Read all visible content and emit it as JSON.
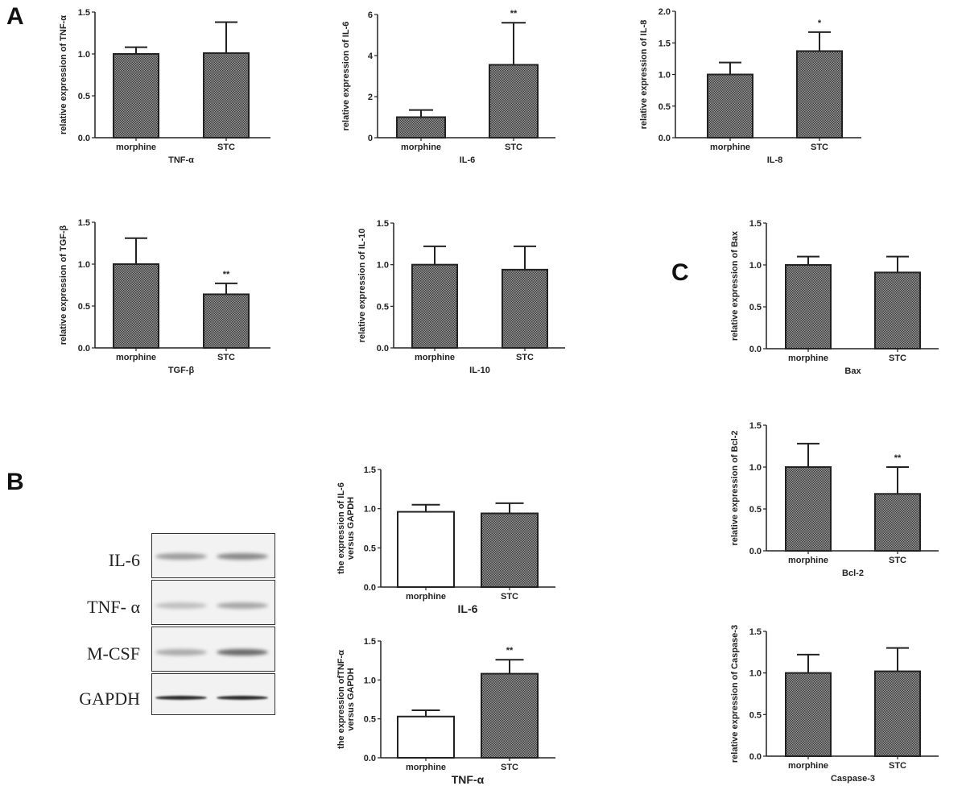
{
  "panels": {
    "a": "A",
    "b": "B",
    "c": "C"
  },
  "western_blot": {
    "rows": [
      {
        "label": "IL-6",
        "intensity": [
          0.35,
          0.45
        ]
      },
      {
        "label": "TNF- α",
        "intensity": [
          0.18,
          0.3
        ]
      },
      {
        "label": "M-CSF",
        "intensity": [
          0.28,
          0.6
        ]
      },
      {
        "label": "GAPDH",
        "intensity": [
          0.9,
          0.9
        ]
      }
    ]
  },
  "colors": {
    "hatch": "#555555",
    "axis": "#222222",
    "white_bar": "#ffffff"
  },
  "chart_data": [
    {
      "id": "A-TNF",
      "type": "bar",
      "categories": [
        "morphine",
        "STC"
      ],
      "values": [
        1.0,
        1.01
      ],
      "error_upper": [
        1.08,
        1.38
      ],
      "significance": [
        "",
        ""
      ],
      "fills": [
        "hatch",
        "hatch"
      ],
      "ylim": [
        0,
        1.5
      ],
      "yticks": [
        "0.0",
        "0.5",
        "1.0",
        "1.5"
      ],
      "ylabel": [
        "relative expression of TNF-α"
      ],
      "xlabel": "TNF-α"
    },
    {
      "id": "A-IL6",
      "type": "bar",
      "categories": [
        "morphine",
        "STC"
      ],
      "values": [
        1.0,
        3.55
      ],
      "error_upper": [
        1.35,
        5.6
      ],
      "significance": [
        "",
        "**"
      ],
      "fills": [
        "hatch",
        "hatch"
      ],
      "ylim": [
        0,
        6
      ],
      "yticks": [
        "0",
        "2",
        "4",
        "6"
      ],
      "ylabel": [
        "relative expression of IL-6"
      ],
      "xlabel": "IL-6"
    },
    {
      "id": "A-IL8",
      "type": "bar",
      "categories": [
        "morphine",
        "STC"
      ],
      "values": [
        1.0,
        1.37
      ],
      "error_upper": [
        1.19,
        1.67
      ],
      "significance": [
        "",
        "*"
      ],
      "fills": [
        "hatch",
        "hatch"
      ],
      "ylim": [
        0,
        2.0
      ],
      "yticks": [
        "0.0",
        "0.5",
        "1.0",
        "1.5",
        "2.0"
      ],
      "ylabel": [
        "relative expression of IL-8"
      ],
      "xlabel": "IL-8"
    },
    {
      "id": "A-TGF",
      "type": "bar",
      "categories": [
        "morphine",
        "STC"
      ],
      "values": [
        1.0,
        0.64
      ],
      "error_upper": [
        1.31,
        0.77
      ],
      "significance": [
        "",
        "**"
      ],
      "fills": [
        "hatch",
        "hatch"
      ],
      "ylim": [
        0,
        1.5
      ],
      "yticks": [
        "0.0",
        "0.5",
        "1.0",
        "1.5"
      ],
      "ylabel": [
        "relative expression of TGF-β"
      ],
      "xlabel": "TGF-β"
    },
    {
      "id": "A-IL10",
      "type": "bar",
      "categories": [
        "morphine",
        "STC"
      ],
      "values": [
        1.0,
        0.94
      ],
      "error_upper": [
        1.22,
        1.22
      ],
      "significance": [
        "",
        ""
      ],
      "fills": [
        "hatch",
        "hatch"
      ],
      "ylim": [
        0,
        1.5
      ],
      "yticks": [
        "0.0",
        "0.5",
        "1.0",
        "1.5"
      ],
      "ylabel": [
        "relative expression of IL-10"
      ],
      "xlabel": "IL-10"
    },
    {
      "id": "C-Bax",
      "type": "bar",
      "categories": [
        "morphine",
        "STC"
      ],
      "values": [
        1.0,
        0.91
      ],
      "error_upper": [
        1.1,
        1.1
      ],
      "significance": [
        "",
        ""
      ],
      "fills": [
        "hatch",
        "hatch"
      ],
      "ylim": [
        0,
        1.5
      ],
      "yticks": [
        "0.0",
        "0.5",
        "1.0",
        "1.5"
      ],
      "ylabel": [
        "relative expression of Bax"
      ],
      "xlabel": "Bax"
    },
    {
      "id": "C-Bcl2",
      "type": "bar",
      "categories": [
        "morphine",
        "STC"
      ],
      "values": [
        1.0,
        0.68
      ],
      "error_upper": [
        1.28,
        1.0
      ],
      "significance": [
        "",
        "**"
      ],
      "fills": [
        "hatch",
        "hatch"
      ],
      "ylim": [
        0,
        1.5
      ],
      "yticks": [
        "0.0",
        "0.5",
        "1.0",
        "1.5"
      ],
      "ylabel": [
        "relative expression of Bcl-2"
      ],
      "xlabel": "Bcl-2"
    },
    {
      "id": "C-Casp3",
      "type": "bar",
      "categories": [
        "morphine",
        "STC"
      ],
      "values": [
        1.0,
        1.02
      ],
      "error_upper": [
        1.22,
        1.3
      ],
      "significance": [
        "",
        ""
      ],
      "fills": [
        "hatch",
        "hatch"
      ],
      "ylim": [
        0,
        1.5
      ],
      "yticks": [
        "0.0",
        "0.5",
        "1.0",
        "1.5"
      ],
      "ylabel": [
        "relative expression of Caspase-3"
      ],
      "xlabel": "Caspase-3"
    },
    {
      "id": "B-IL6",
      "type": "bar",
      "categories": [
        "morphine",
        "STC"
      ],
      "values": [
        0.96,
        0.94
      ],
      "error_upper": [
        1.05,
        1.07
      ],
      "significance": [
        "",
        ""
      ],
      "fills": [
        "white",
        "hatch"
      ],
      "ylim": [
        0,
        1.5
      ],
      "yticks": [
        "0.0",
        "0.5",
        "1.0",
        "1.5"
      ],
      "ylabel": [
        "the expression of IL-6",
        "versus GAPDH"
      ],
      "xlabel": "IL-6"
    },
    {
      "id": "B-TNF",
      "type": "bar",
      "categories": [
        "morphine",
        "STC"
      ],
      "values": [
        0.53,
        1.08
      ],
      "error_upper": [
        0.61,
        1.26
      ],
      "significance": [
        "",
        "**"
      ],
      "fills": [
        "white",
        "hatch"
      ],
      "ylim": [
        0,
        1.5
      ],
      "yticks": [
        "0.0",
        "0.5",
        "1.0",
        "1.5"
      ],
      "ylabel": [
        "the expression ofTNF-α",
        "versus GAPDH"
      ],
      "xlabel": "TNF-α"
    }
  ]
}
